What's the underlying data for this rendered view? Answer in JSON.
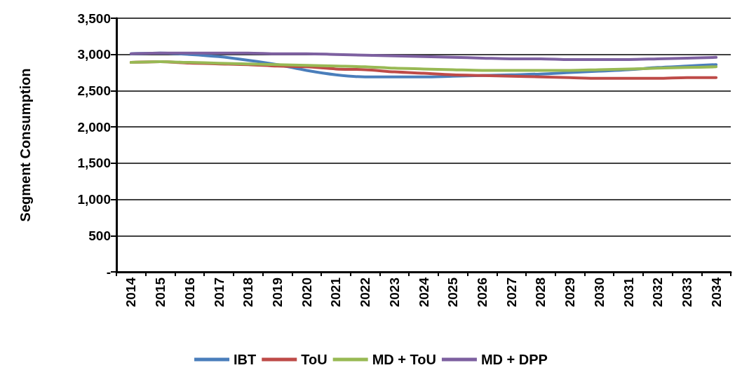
{
  "chart_data": {
    "type": "line",
    "ylabel": "Segment Consumption",
    "categories": [
      "2014",
      "2015",
      "2016",
      "2017",
      "2018",
      "2019",
      "2020",
      "2021",
      "2022",
      "2023",
      "2024",
      "2025",
      "2026",
      "2027",
      "2028",
      "2029",
      "2030",
      "2031",
      "2032",
      "2033",
      "2034"
    ],
    "series": [
      {
        "name": "IBT",
        "color": "#4a7ebb",
        "values": [
          3010,
          3020,
          3000,
          2970,
          2920,
          2860,
          2780,
          2720,
          2690,
          2690,
          2690,
          2700,
          2710,
          2720,
          2730,
          2750,
          2770,
          2790,
          2820,
          2840,
          2860
        ]
      },
      {
        "name": "ToU",
        "color": "#be4b48",
        "values": [
          2890,
          2900,
          2880,
          2870,
          2860,
          2840,
          2830,
          2800,
          2790,
          2760,
          2740,
          2720,
          2710,
          2700,
          2690,
          2680,
          2670,
          2670,
          2670,
          2680,
          2680
        ]
      },
      {
        "name": "MD + ToU",
        "color": "#98b954",
        "values": [
          2890,
          2900,
          2890,
          2880,
          2870,
          2860,
          2850,
          2840,
          2830,
          2810,
          2800,
          2790,
          2780,
          2780,
          2780,
          2780,
          2790,
          2800,
          2810,
          2820,
          2830
        ]
      },
      {
        "name": "MD + DPP",
        "color": "#7d60a0",
        "values": [
          3010,
          3020,
          3020,
          3020,
          3020,
          3010,
          3010,
          3000,
          2990,
          2980,
          2970,
          2960,
          2950,
          2940,
          2940,
          2930,
          2930,
          2930,
          2940,
          2950,
          2960
        ]
      }
    ],
    "ylim": [
      0,
      3500
    ],
    "yticks": [
      {
        "value": 0,
        "label": "-"
      },
      500,
      {
        "value": 1000,
        "label": "1,000"
      },
      {
        "value": 1500,
        "label": "1,500"
      },
      {
        "value": 2000,
        "label": "2,000"
      },
      {
        "value": 2500,
        "label": "2,500"
      },
      {
        "value": 3000,
        "label": "3,000"
      },
      {
        "value": 3500,
        "label": "3,500"
      }
    ],
    "grid": "y",
    "legend": "bottom",
    "marker": "none",
    "line_style": "solid"
  }
}
